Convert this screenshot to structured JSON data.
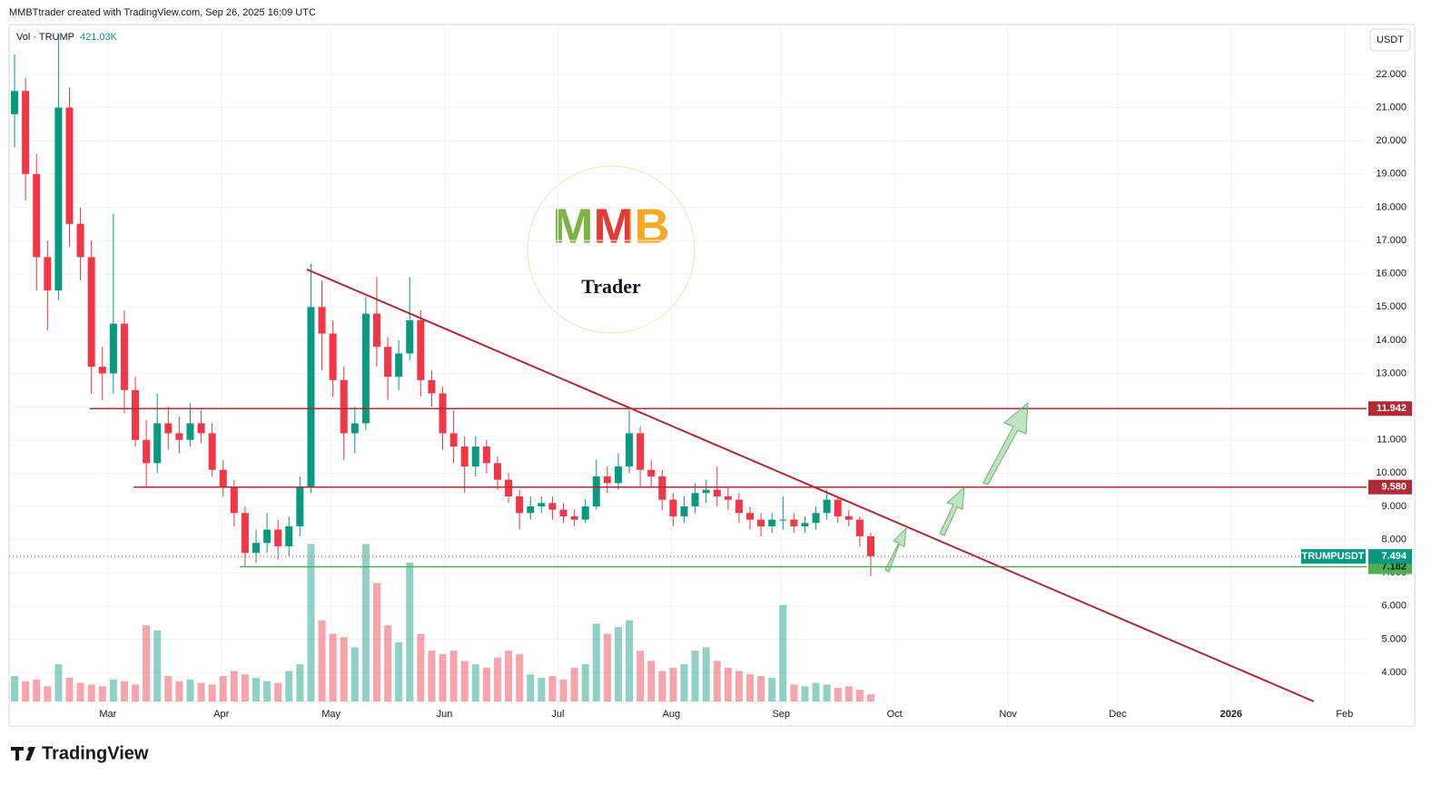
{
  "header": {
    "credit": "MMBTtrader created with TradingView.com, Sep 26, 2025 16:09 UTC",
    "currency": "USDT"
  },
  "logo": {
    "title": "MMB",
    "subtitle": "Trader"
  },
  "footer": {
    "brand": "TradingView"
  },
  "chart_data": {
    "type": "candlestick",
    "name": "TRUMPUSDT",
    "up_color": "#089981",
    "down_color": "#f23645",
    "xlim": [
      0,
      371
    ],
    "xticks": [
      {
        "value": 27,
        "label": "Mar"
      },
      {
        "value": 58,
        "label": "Apr"
      },
      {
        "value": 88,
        "label": "May"
      },
      {
        "value": 119,
        "label": "Jun"
      },
      {
        "value": 150,
        "label": "Jul"
      },
      {
        "value": 181,
        "label": "Aug"
      },
      {
        "value": 211,
        "label": "Sep"
      },
      {
        "value": 242,
        "label": "Oct"
      },
      {
        "value": 273,
        "label": "Nov"
      },
      {
        "value": 303,
        "label": "Dec"
      },
      {
        "value": 334,
        "label": "2026"
      },
      {
        "value": 365,
        "label": "Feb"
      }
    ],
    "ylim": [
      2.39,
      23.5
    ],
    "yticks": [
      {
        "value": 4,
        "label": "4.000"
      },
      {
        "value": 5,
        "label": "5.000"
      },
      {
        "value": 6,
        "label": "6.000"
      },
      {
        "value": 7,
        "label": "7.000"
      },
      {
        "value": 8,
        "label": "8.000"
      },
      {
        "value": 9,
        "label": "9.000"
      },
      {
        "value": 10,
        "label": "10.000"
      },
      {
        "value": 11,
        "label": "11.000"
      },
      {
        "value": 12,
        "label": "12.000"
      },
      {
        "value": 13,
        "label": "13.000"
      },
      {
        "value": 14,
        "label": "14.000"
      },
      {
        "value": 15,
        "label": "15.000"
      },
      {
        "value": 16,
        "label": "16.000"
      },
      {
        "value": 17,
        "label": "17.000"
      },
      {
        "value": 18,
        "label": "18.000"
      },
      {
        "value": 19,
        "label": "19.000"
      },
      {
        "value": 20,
        "label": "20.000"
      },
      {
        "value": 21,
        "label": "21.000"
      },
      {
        "value": 22,
        "label": "22.000"
      }
    ],
    "grid": true,
    "open": [
      20.8,
      21.5,
      19,
      16.5,
      15.5,
      21,
      17.5,
      16.5,
      13.2,
      13,
      14.5,
      12.5,
      11,
      10.3,
      11.5,
      11.2,
      11,
      11.5,
      11.2,
      10.1,
      9.6,
      8.8,
      7.6,
      7.9,
      8.3,
      7.8,
      8.4,
      9.6,
      15,
      14.2,
      12.8,
      11.2,
      11.5,
      14.8,
      13.8,
      12.9,
      13.6,
      14.6,
      12.8,
      12.4,
      11.2,
      10.8,
      10.2,
      10.8,
      10.3,
      9.8,
      9.3,
      8.8,
      9,
      9.1,
      8.9,
      8.7,
      8.6,
      9,
      9.9,
      9.7,
      10.2,
      11.2,
      10.1,
      9.9,
      9.2,
      8.7,
      9,
      9.4,
      9.5,
      9.3,
      9.2,
      8.8,
      8.6,
      8.4,
      8.6,
      8.6,
      8.4,
      8.5,
      8.8,
      9.2,
      8.7,
      8.6,
      8.1
    ],
    "high": [
      22.6,
      21.9,
      19.6,
      17,
      23.2,
      21.6,
      18,
      17,
      13.8,
      17.8,
      14.9,
      12.9,
      11.6,
      12.4,
      12,
      11.7,
      12.1,
      11.9,
      11.5,
      10.4,
      9.8,
      9,
      8.3,
      8.8,
      8.6,
      8.7,
      9.9,
      16.3,
      15.8,
      14.6,
      13.2,
      12,
      15.3,
      15.9,
      14.1,
      14,
      15.9,
      14.9,
      13.1,
      12.6,
      11.9,
      11.1,
      11.1,
      11,
      10.5,
      10,
      9.5,
      9.3,
      9.3,
      9.3,
      9.1,
      8.9,
      9.2,
      10.4,
      10.2,
      10.6,
      11.9,
      11.4,
      10.4,
      10.1,
      9.4,
      9.3,
      9.7,
      9.8,
      10.2,
      9.6,
      9.4,
      9,
      8.8,
      8.8,
      9.3,
      8.8,
      8.7,
      9,
      9.5,
      9.3,
      8.9,
      8.7,
      8.2
    ],
    "low": [
      19.8,
      18.2,
      15.5,
      14.3,
      15.2,
      16.8,
      15.8,
      12.4,
      12.2,
      12.4,
      11.8,
      10.8,
      9.6,
      10,
      10.7,
      10.6,
      10.8,
      10.9,
      9.9,
      9.3,
      8.4,
      7.2,
      7.3,
      7.6,
      7.4,
      7.5,
      8.1,
      9.4,
      13.1,
      12.3,
      10.4,
      10.6,
      11.3,
      13.2,
      12.2,
      12.5,
      13.4,
      12.3,
      12,
      10.7,
      10.3,
      9.4,
      9.9,
      10,
      9.5,
      9.1,
      8.3,
      8.6,
      8.8,
      8.6,
      8.5,
      8.4,
      8.5,
      8.9,
      9.4,
      9.5,
      10,
      9.6,
      9.6,
      8.9,
      8.4,
      8.5,
      8.8,
      9.1,
      9,
      8.9,
      8.5,
      8.3,
      8.1,
      8.2,
      8.3,
      8.2,
      8.2,
      8.3,
      8.6,
      8.5,
      8.4,
      7.8,
      6.9
    ],
    "close": [
      21.5,
      19,
      16.5,
      15.5,
      21,
      17.5,
      16.5,
      13.2,
      13,
      14.5,
      12.5,
      11,
      10.3,
      11.5,
      11.2,
      11,
      11.5,
      11.2,
      10.1,
      9.6,
      8.8,
      7.6,
      7.9,
      8.3,
      7.8,
      8.4,
      9.6,
      15,
      14.2,
      12.8,
      11.2,
      11.5,
      14.8,
      13.8,
      12.9,
      13.6,
      14.6,
      12.8,
      12.4,
      11.2,
      10.8,
      10.2,
      10.8,
      10.3,
      9.8,
      9.3,
      8.8,
      9,
      9.1,
      8.9,
      8.7,
      8.6,
      9,
      9.9,
      9.7,
      10.2,
      11.2,
      10.1,
      9.9,
      9.2,
      8.7,
      9,
      9.4,
      9.5,
      9.3,
      9.2,
      8.8,
      8.6,
      8.4,
      8.6,
      8.6,
      8.4,
      8.5,
      8.8,
      9.2,
      8.7,
      8.6,
      8.1,
      7.5
    ],
    "volume": {
      "name": "Vol · TRUMP",
      "axis": "y2",
      "last_label": "421.03K",
      "values": [
        1500,
        1200,
        1300,
        900,
        2200,
        1400,
        1100,
        1000,
        900,
        1300,
        1200,
        1000,
        4500,
        4200,
        1500,
        1200,
        1300,
        1100,
        1000,
        1500,
        1800,
        1600,
        1400,
        1200,
        1100,
        1800,
        2200,
        9300,
        4800,
        4000,
        3800,
        3200,
        9300,
        7000,
        4500,
        3500,
        8200,
        4000,
        3000,
        2800,
        3000,
        2400,
        2200,
        2000,
        2600,
        3000,
        2800,
        1600,
        1400,
        1500,
        1300,
        2000,
        2200,
        4600,
        4000,
        4400,
        4800,
        3000,
        2400,
        1800,
        2000,
        2200,
        3000,
        3200,
        2400,
        2000,
        1800,
        1600,
        1500,
        1400,
        5700,
        1000,
        900,
        1100,
        1000,
        800,
        900,
        700,
        421.03
      ]
    },
    "y2lim": [
      0,
      40000
    ],
    "levels": [
      {
        "value": 11.942,
        "label": "11.942",
        "x_start": 22,
        "color": "#b22833",
        "text_color": "#ffffff"
      },
      {
        "value": 9.58,
        "label": "9.580",
        "x_start": 34,
        "color": "#b22833",
        "text_color": "#ffffff"
      },
      {
        "value": 7.182,
        "label": "7.182",
        "x_start": 63,
        "color": "#4caf50",
        "text_color": "#131722"
      }
    ],
    "last_price": {
      "name": "TRUMPUSDT",
      "value": 7.494,
      "label": "7.494",
      "color": "#089981",
      "line_color": "#f23645"
    },
    "trendline": {
      "x": [
        81.4,
        356.6
      ],
      "y": [
        16.13,
        3.13
      ],
      "color": "#b22833"
    }
  }
}
